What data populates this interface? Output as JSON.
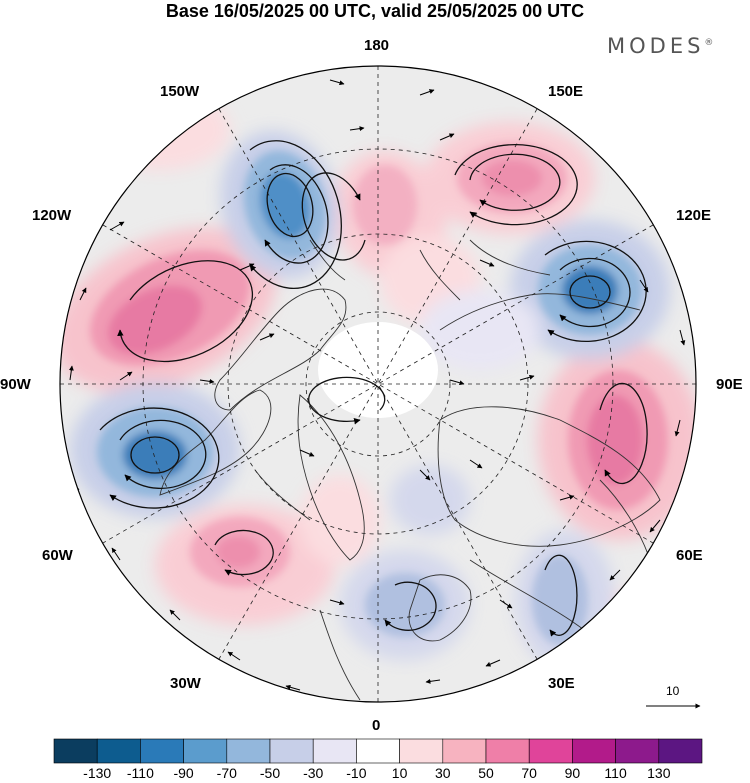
{
  "title": "Base 16/05/2025 00 UTC, valid 25/05/2025 00 UTC",
  "brand": "MODES",
  "brand_mark": "®",
  "longitude_labels": {
    "top": "180",
    "top_left": "150W",
    "top_right": "150E",
    "upper_left": "120W",
    "upper_right": "120E",
    "left": "90W",
    "right": "90E",
    "lower_left": "60W",
    "lower_right": "60E",
    "bottom_left": "30W",
    "bottom_right": "30E",
    "bottom": "0"
  },
  "reference_vector_label": "10",
  "colorbar": {
    "labels": [
      "-130",
      "-110",
      "-90",
      "-70",
      "-50",
      "-30",
      "-10",
      "10",
      "30",
      "50",
      "70",
      "90",
      "110",
      "130"
    ],
    "colors": [
      "#0b3d5f",
      "#0d5c8f",
      "#2a7ab8",
      "#5b9ccd",
      "#93b7dc",
      "#c7cfe8",
      "#e8e6f4",
      "#ffffff",
      "#fbdde0",
      "#f7b3c0",
      "#ef7fa8",
      "#e0449a",
      "#b21b8a",
      "#8d1a8c",
      "#5c1682"
    ]
  },
  "map": {
    "projection": "north-polar-stereographic",
    "anomalies": [
      {
        "kind": "negative",
        "level": "strong",
        "near": "Gulf of Alaska / Bering"
      },
      {
        "kind": "negative",
        "level": "strong",
        "near": "Siberia 120E"
      },
      {
        "kind": "negative",
        "level": "strong",
        "near": "Labrador / Hudson 60-90W"
      },
      {
        "kind": "negative",
        "level": "moderate",
        "near": "Scandinavia / Europe"
      },
      {
        "kind": "positive",
        "level": "strong",
        "near": "Western Canada 110W"
      },
      {
        "kind": "positive",
        "level": "strong",
        "near": "Central Asia 90E"
      },
      {
        "kind": "positive",
        "level": "moderate",
        "near": "North Pacific 150E"
      },
      {
        "kind": "positive",
        "level": "moderate",
        "near": "Chukotka / Arctic 170E"
      },
      {
        "kind": "positive",
        "level": "moderate",
        "near": "North Atlantic 45W"
      }
    ]
  }
}
